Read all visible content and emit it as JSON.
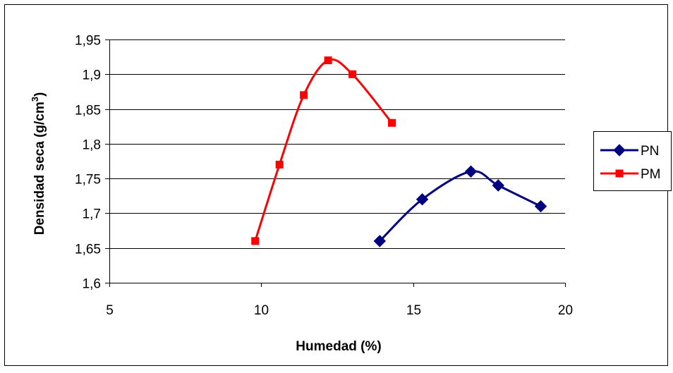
{
  "chart_data": {
    "type": "line",
    "title": "",
    "xlabel": "Humedad (%)",
    "ylabel_main": "Densidad seca (g/cm",
    "ylabel_sup": "3",
    "ylabel_end": ")",
    "xlim": [
      5,
      20
    ],
    "ylim": [
      1.6,
      1.95
    ],
    "xticks": [
      5,
      10,
      15,
      20
    ],
    "xtick_labels": [
      "5",
      "10",
      "15",
      "20"
    ],
    "yticks": [
      1.6,
      1.65,
      1.7,
      1.75,
      1.8,
      1.85,
      1.9,
      1.95
    ],
    "ytick_labels": [
      "1,6",
      "1,65",
      "1,7",
      "1,75",
      "1,8",
      "1,85",
      "1,9",
      "1,95"
    ],
    "grid": "horizontal",
    "legend_position": "right",
    "series": [
      {
        "name": "PN",
        "color": "#000080",
        "marker": "diamond",
        "x": [
          13.9,
          15.3,
          16.9,
          17.8,
          19.2
        ],
        "y": [
          1.66,
          1.72,
          1.76,
          1.74,
          1.71
        ]
      },
      {
        "name": "PM",
        "color": "#ff0000",
        "marker": "square",
        "x": [
          9.8,
          10.6,
          11.4,
          12.2,
          13.0,
          14.3
        ],
        "y": [
          1.66,
          1.77,
          1.87,
          1.92,
          1.9,
          1.83
        ]
      }
    ]
  }
}
